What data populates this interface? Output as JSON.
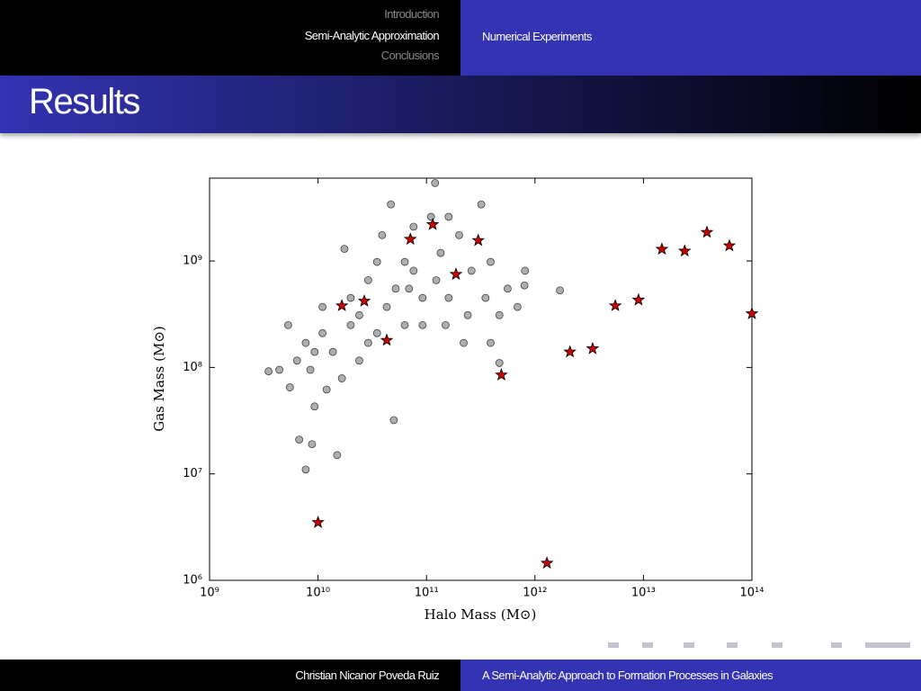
{
  "header": {
    "sections": [
      "Introduction",
      "Semi-Analytic Approximation",
      "Conclusions"
    ],
    "subsection": "Numerical Experiments"
  },
  "frame_title": "Results",
  "chart_data": {
    "type": "scatter",
    "xlabel": "Halo Mass (M⊙)",
    "ylabel": "Gas Mass (M⊙)",
    "xscale": "log",
    "yscale": "log",
    "xlim": [
      1000000000,
      100000000000000
    ],
    "ylim": [
      1000000,
      6000000000
    ],
    "xticks": [
      {
        "value": 1000000000,
        "label": "10⁹"
      },
      {
        "value": 10000000000,
        "label": "10¹⁰"
      },
      {
        "value": 100000000000,
        "label": "10¹¹"
      },
      {
        "value": 1000000000000,
        "label": "10¹²"
      },
      {
        "value": 10000000000000,
        "label": "10¹³"
      },
      {
        "value": 100000000000000,
        "label": "10¹⁴"
      }
    ],
    "yticks": [
      {
        "value": 1000000,
        "label": "10⁶"
      },
      {
        "value": 10000000,
        "label": "10⁷"
      },
      {
        "value": 100000000,
        "label": "10⁸"
      },
      {
        "value": 1000000000,
        "label": "10⁹"
      }
    ],
    "series": [
      {
        "color": "#8c8c8c",
        "marker": "circle",
        "x": [
          3500000000.0,
          9300000000.0,
          6700000000.0,
          8800000000.0,
          7700000000.0,
          15000000000.0,
          50000000000.0,
          470000000000.0,
          1700000000000.0,
          810000000000.0,
          800000000000.0,
          690000000000.0,
          120000000000.0,
          47000000000.0,
          320000000000.0,
          17500000000.0,
          5300000000.0,
          5500000000.0,
          12000000000.0,
          76000000000.0,
          160000000000.0,
          240000000000.0,
          390000000000.0,
          35000000000.0,
          24000000000.0,
          16600000000.0,
          9300000000.0,
          6400000000.0,
          52000000000.0,
          92000000000.0,
          135000000000.0,
          200000000000.0,
          63000000000.0,
          29000000000.0,
          20000000000.0,
          11000000000.0,
          35000000000.0,
          110000000000.0,
          260000000000.0,
          350000000000.0,
          470000000000.0,
          76000000000.0,
          43000000000.0,
          24000000000.0,
          13700000000.0,
          8500000000.0,
          20000000000.0,
          92000000000.0,
          150000000000.0,
          220000000000.0,
          63000000000.0,
          39000000000.0,
          160000000000.0,
          390000000000.0,
          560000000000.0,
          7700000000.0,
          4400000000.0,
          11000000000.0,
          29000000000.0,
          69000000000.0,
          123000000000.0
        ],
        "values": [
          92000000.0,
          43000000.0,
          21000000.0,
          19000000.0,
          11000000.0,
          15000000.0,
          32000000.0,
          110000000.0,
          530000000.0,
          810000000.0,
          590000000.0,
          370000000.0,
          5400000000.0,
          3400000000.0,
          3400000000.0,
          1300000000.0,
          250000000.0,
          65000000.0,
          62000000.0,
          810000000.0,
          450000000.0,
          310000000.0,
          170000000.0,
          210000000.0,
          116000000.0,
          79000000.0,
          140000000.0,
          116000000.0,
          550000000.0,
          450000000.0,
          1190000000.0,
          1750000000.0,
          980000000.0,
          660000000.0,
          250000000.0,
          210000000.0,
          980000000.0,
          2600000000.0,
          810000000.0,
          450000000.0,
          310000000.0,
          2100000000.0,
          370000000.0,
          310000000.0,
          140000000.0,
          95000000.0,
          450000000.0,
          250000000.0,
          250000000.0,
          170000000.0,
          250000000.0,
          1750000000.0,
          2600000000.0,
          980000000.0,
          550000000.0,
          170000000.0,
          95000000.0,
          370000000.0,
          170000000.0,
          550000000.0,
          660000000.0
        ]
      },
      {
        "color": "#cc0000",
        "marker": "star",
        "x": [
          10000000000.0,
          16600000000.0,
          26700000000.0,
          43000000000.0,
          71000000000.0,
          114000000000.0,
          187000000000.0,
          300000000000.0,
          490000000000.0,
          1290000000000.0,
          2100000000000.0,
          3400000000000.0,
          5500000000000.0,
          9000000000000.0,
          14800000000000.0,
          24000000000000.0,
          38500000000000.0,
          62000000000000.0,
          100000000000000.0
        ],
        "values": [
          3500000.0,
          380000000.0,
          420000000.0,
          180000000.0,
          1600000000.0,
          2200000000.0,
          750000000.0,
          1560000000.0,
          85000000.0,
          1450000.0,
          140000000.0,
          150000000.0,
          380000000.0,
          430000000.0,
          1290000000.0,
          1240000000.0,
          1860000000.0,
          1390000000.0,
          320000000.0
        ]
      }
    ]
  },
  "footer": {
    "author": "Christian Nicanor Poveda Ruiz",
    "title": "A Semi-Analytic Approach to Formation Processes in Galaxies"
  }
}
